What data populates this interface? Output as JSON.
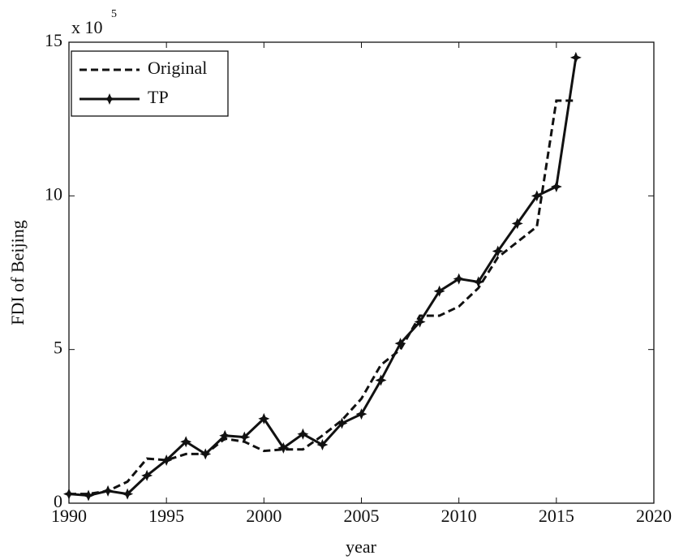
{
  "chart_data": {
    "type": "line",
    "xlabel": "year",
    "ylabel": "FDI of Beijing",
    "y_multiplier": {
      "base": "x 10",
      "exponent": "5"
    },
    "x": [
      1990,
      1991,
      1992,
      1993,
      1994,
      1995,
      1996,
      1997,
      1998,
      1999,
      2000,
      2001,
      2002,
      2003,
      2004,
      2005,
      2006,
      2007,
      2008,
      2009,
      2010,
      2011,
      2012,
      2013,
      2014,
      2015,
      2016
    ],
    "series": [
      {
        "name": "Original",
        "color": "#111111",
        "style": "dashed",
        "marker": false,
        "values": [
          0.3,
          0.3,
          0.4,
          0.7,
          1.45,
          1.4,
          1.6,
          1.6,
          2.1,
          2.0,
          1.7,
          1.75,
          1.75,
          2.2,
          2.7,
          3.4,
          4.5,
          5.0,
          6.1,
          6.1,
          6.4,
          7.0,
          8.0,
          8.5,
          9.0,
          13.1,
          13.1
        ]
      },
      {
        "name": "TP",
        "color": "#111111",
        "style": "solid",
        "marker": true,
        "values": [
          0.3,
          0.25,
          0.4,
          0.3,
          0.9,
          1.4,
          2.0,
          1.6,
          2.2,
          2.15,
          2.75,
          1.8,
          2.25,
          1.9,
          2.6,
          2.9,
          4.0,
          5.2,
          5.9,
          6.9,
          7.3,
          7.2,
          8.2,
          9.1,
          10.0,
          10.3,
          14.5
        ]
      }
    ],
    "xlim": [
      1990,
      2020
    ],
    "xticks": [
      1990,
      1995,
      2000,
      2005,
      2010,
      2015,
      2020
    ],
    "ylim": [
      0,
      15
    ],
    "yticks": [
      0,
      5,
      10,
      15
    ],
    "grid": false,
    "legend": "upper left"
  }
}
